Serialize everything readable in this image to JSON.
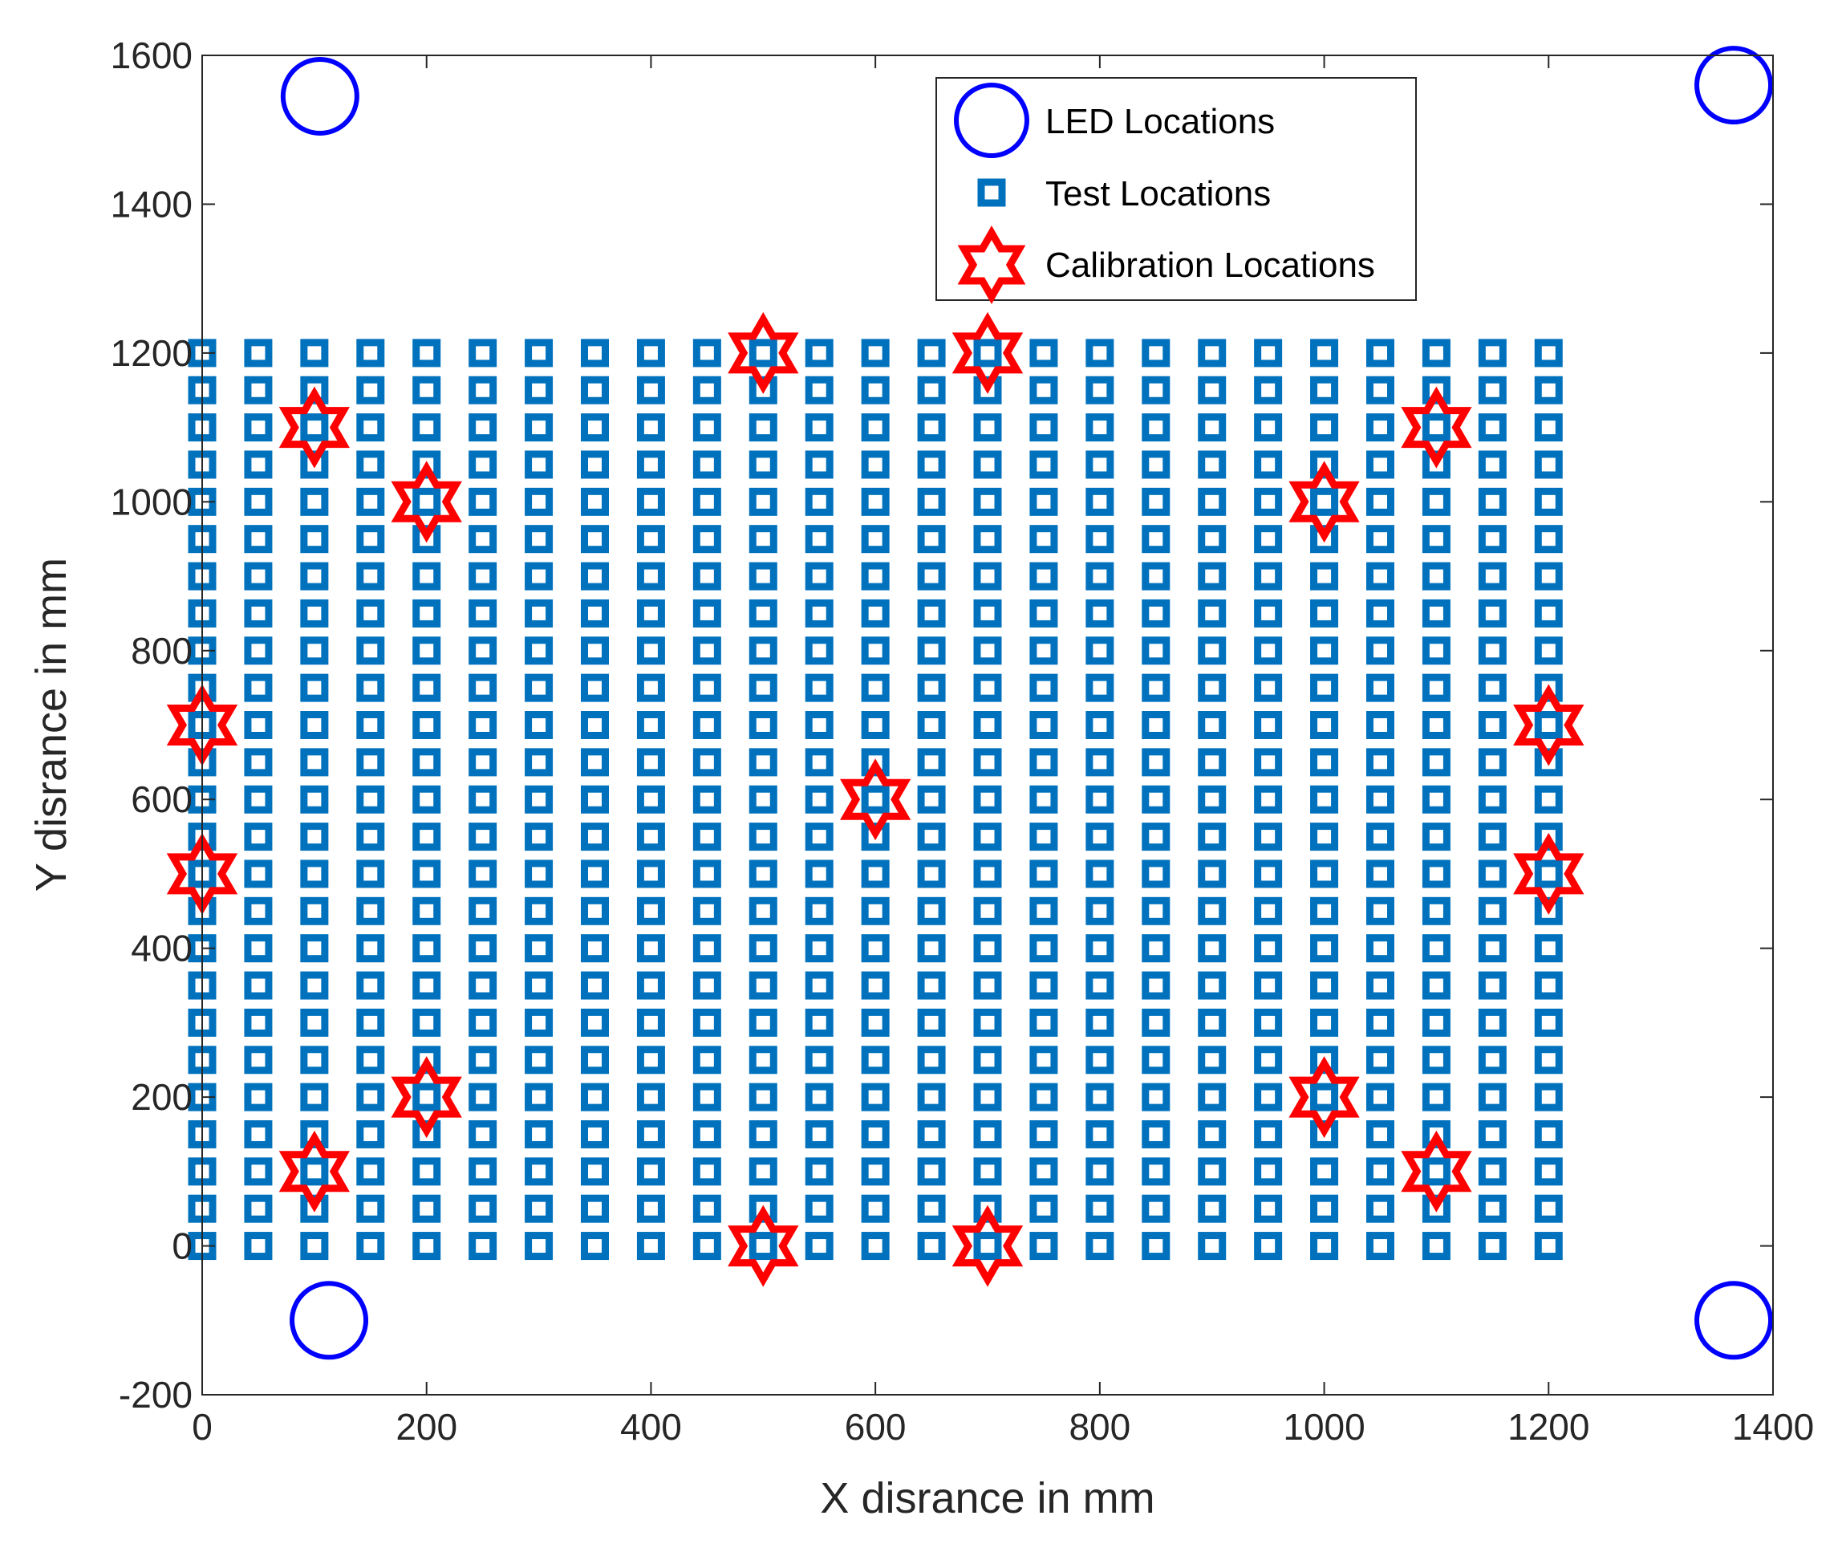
{
  "chart_data": {
    "type": "scatter",
    "title": "",
    "xlabel": "X disrance in mm",
    "ylabel": "Y disrance in mm",
    "xlim": [
      0,
      1400
    ],
    "ylim": [
      -200,
      1600
    ],
    "xticks": [
      0,
      200,
      400,
      600,
      800,
      1000,
      1200,
      1400
    ],
    "yticks": [
      -200,
      0,
      200,
      400,
      600,
      800,
      1000,
      1200,
      1400,
      1600
    ],
    "xtick_labels": [
      "0",
      "200",
      "400",
      "600",
      "800",
      "1000",
      "1200",
      "1400"
    ],
    "ytick_labels": [
      "-200",
      "0",
      "200",
      "400",
      "600",
      "800",
      "1000",
      "1200",
      "1400",
      "1600"
    ],
    "grid": false,
    "legend_position": "top-right",
    "series": [
      {
        "name": "LED Locations",
        "marker": "circle",
        "color": "#0000ff",
        "points": [
          [
            105,
            1545
          ],
          [
            1365,
            1560
          ],
          [
            113,
            -100
          ],
          [
            1365,
            -100
          ]
        ]
      },
      {
        "name": "Test Locations",
        "marker": "square",
        "color": "#0072bd",
        "grid": {
          "x_start": 0,
          "x_end": 1200,
          "x_step": 50,
          "y_start": 0,
          "y_end": 1200,
          "y_step": 50
        }
      },
      {
        "name": "Calibration Locations",
        "marker": "hexagram",
        "color": "#ff0000",
        "points": [
          [
            500,
            1200
          ],
          [
            700,
            1200
          ],
          [
            100,
            1100
          ],
          [
            1100,
            1100
          ],
          [
            200,
            1000
          ],
          [
            1000,
            1000
          ],
          [
            0,
            700
          ],
          [
            1200,
            700
          ],
          [
            600,
            600
          ],
          [
            0,
            500
          ],
          [
            1200,
            500
          ],
          [
            200,
            200
          ],
          [
            1000,
            200
          ],
          [
            100,
            100
          ],
          [
            1100,
            100
          ],
          [
            500,
            0
          ],
          [
            700,
            0
          ]
        ]
      }
    ]
  }
}
